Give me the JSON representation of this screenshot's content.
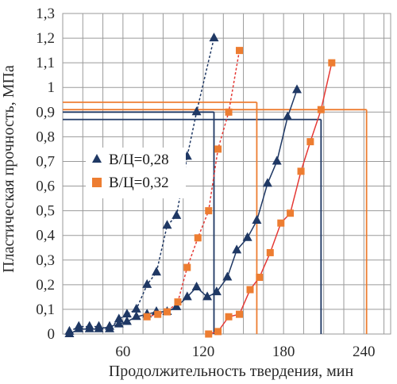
{
  "chart_data": {
    "type": "line",
    "xlabel": "Продолжительность твердения, мин",
    "ylabel": "Пластическая прочность, МПа",
    "xlim": [
      15,
      260
    ],
    "ylim": [
      0,
      1.3
    ],
    "xticks": [
      60,
      120,
      180,
      240
    ],
    "xtick_labels": [
      "60",
      "120",
      "180",
      "240"
    ],
    "yticks": [
      0,
      0.1,
      0.2,
      0.3,
      0.4,
      0.5,
      0.6,
      0.7,
      0.8,
      0.9,
      1,
      1.1,
      1.2,
      1.3
    ],
    "ytick_labels": [
      "0",
      "0,1",
      "0,2",
      "0,3",
      "0,4",
      "0,5",
      "0,6",
      "0,7",
      "0,8",
      "0,9",
      "1",
      "1,1",
      "1,2",
      "1,3"
    ],
    "grid": true,
    "legend_position": "center-left",
    "legend": [
      {
        "label": "В/Ц=0,28",
        "marker": "triangle",
        "color": "#1f3864"
      },
      {
        "label": "В/Ц=0,32",
        "marker": "square",
        "color": "#ed7d31"
      }
    ],
    "series": [
      {
        "group": "В/Ц=0,28",
        "style": "dashed",
        "marker": "triangle",
        "color": "#1f3864",
        "points": [
          [
            20,
            0.01
          ],
          [
            27,
            0.03
          ],
          [
            35,
            0.03
          ],
          [
            42,
            0.03
          ],
          [
            50,
            0.02
          ],
          [
            57,
            0.06
          ],
          [
            63,
            0.08
          ],
          [
            70,
            0.1
          ],
          [
            78,
            0.2
          ],
          [
            85,
            0.25
          ],
          [
            93,
            0.44
          ],
          [
            100,
            0.48
          ],
          [
            108,
            0.72
          ],
          [
            115,
            0.9
          ],
          [
            128,
            1.2
          ]
        ]
      },
      {
        "group": "В/Ц=0,28",
        "style": "solid",
        "marker": "triangle",
        "color": "#1f3864",
        "points": [
          [
            20,
            0
          ],
          [
            27,
            0.02
          ],
          [
            35,
            0.02
          ],
          [
            42,
            0.02
          ],
          [
            50,
            0.03
          ],
          [
            57,
            0.04
          ],
          [
            63,
            0.05
          ],
          [
            70,
            0.07
          ],
          [
            78,
            0.08
          ],
          [
            85,
            0.09
          ],
          [
            93,
            0.09
          ],
          [
            100,
            0.11
          ],
          [
            108,
            0.15
          ],
          [
            115,
            0.19
          ],
          [
            123,
            0.15
          ],
          [
            130,
            0.17
          ],
          [
            138,
            0.23
          ],
          [
            145,
            0.34
          ],
          [
            153,
            0.39
          ],
          [
            160,
            0.46
          ],
          [
            168,
            0.61
          ],
          [
            175,
            0.7
          ],
          [
            183,
            0.88
          ],
          [
            190,
            0.99
          ]
        ]
      },
      {
        "group": "В/Ц=0,32",
        "style": "dashed",
        "marker": "square",
        "color": "#ed7d31",
        "points": [
          [
            78,
            0.07
          ],
          [
            86,
            0.08
          ],
          [
            93,
            0.09
          ],
          [
            101,
            0.13
          ],
          [
            108,
            0.27
          ],
          [
            116,
            0.39
          ],
          [
            124,
            0.5
          ],
          [
            131,
            0.75
          ],
          [
            139,
            0.9
          ],
          [
            147,
            1.15
          ]
        ]
      },
      {
        "group": "В/Ц=0,32",
        "style": "solid",
        "marker": "square",
        "color": "#ed7d31",
        "points": [
          [
            124,
            0
          ],
          [
            131,
            0.01
          ],
          [
            139,
            0.07
          ],
          [
            147,
            0.08
          ],
          [
            155,
            0.18
          ],
          [
            162,
            0.23
          ],
          [
            170,
            0.33
          ],
          [
            178,
            0.45
          ],
          [
            185,
            0.49
          ],
          [
            193,
            0.66
          ],
          [
            200,
            0.78
          ],
          [
            208,
            0.91
          ],
          [
            216,
            1.1
          ]
        ]
      }
    ],
    "reference_lines": [
      {
        "color": "#1f3864",
        "y": 0.87,
        "x": 208
      },
      {
        "color": "#1f3864",
        "y": 0.9,
        "x": 128
      },
      {
        "color": "#ed7d31",
        "y": 0.91,
        "x": 242
      },
      {
        "color": "#ed7d31",
        "y": 0.94,
        "x": 160
      }
    ]
  }
}
